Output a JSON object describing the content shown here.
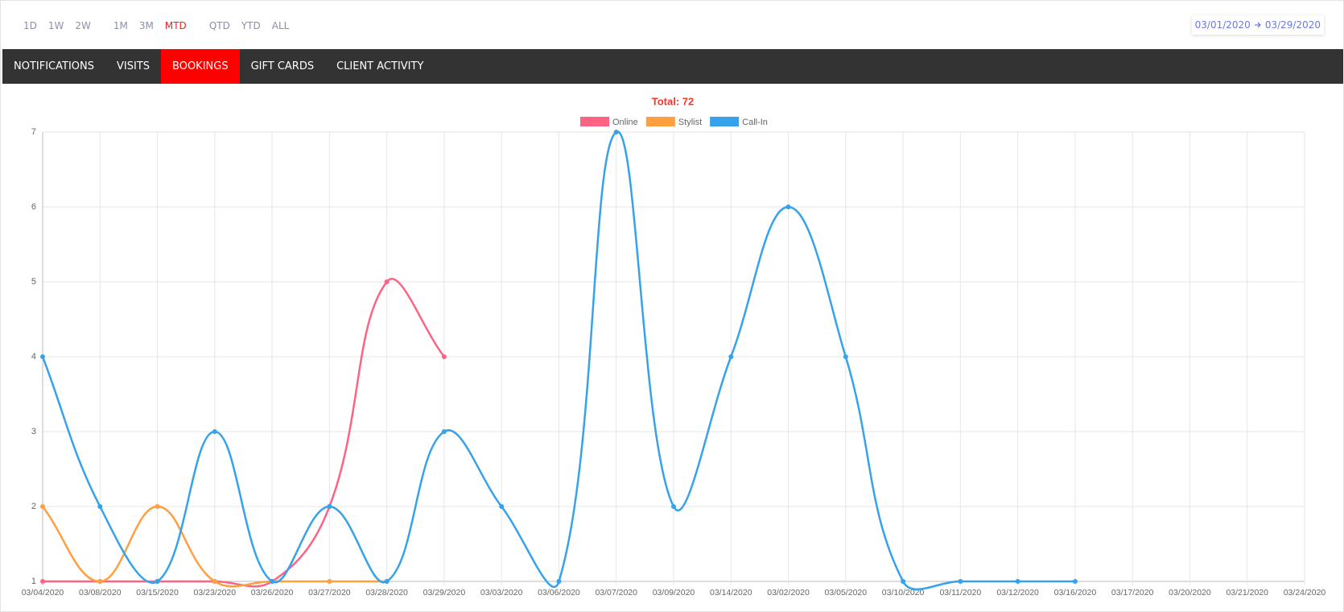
{
  "header": {
    "ranges": [
      "1D",
      "1W",
      "2W",
      "1M",
      "3M",
      "MTD",
      "QTD",
      "YTD",
      "ALL"
    ],
    "active_range": "MTD",
    "date_from": "03/01/2020",
    "date_to": "03/29/2020"
  },
  "tabs": [
    "NOTIFICATIONS",
    "VISITS",
    "BOOKINGS",
    "GIFT CARDS",
    "CLIENT ACTIVITY"
  ],
  "active_tab": "BOOKINGS",
  "chart_data": {
    "type": "line",
    "title": "Total: 72",
    "categories": [
      "03/04/2020",
      "03/08/2020",
      "03/15/2020",
      "03/23/2020",
      "03/26/2020",
      "03/27/2020",
      "03/28/2020",
      "03/29/2020",
      "03/03/2020",
      "03/06/2020",
      "03/07/2020",
      "03/09/2020",
      "03/14/2020",
      "03/02/2020",
      "03/05/2020",
      "03/10/2020",
      "03/11/2020",
      "03/12/2020",
      "03/16/2020",
      "03/17/2020",
      "03/20/2020",
      "03/21/2020",
      "03/24/2020"
    ],
    "series": [
      {
        "name": "Online",
        "color": "#ff6384",
        "values": [
          1,
          1,
          1,
          1,
          1,
          2,
          5,
          4,
          null,
          null,
          null,
          null,
          null,
          null,
          null,
          null,
          null,
          null,
          null,
          null,
          null,
          null,
          null
        ]
      },
      {
        "name": "Stylist",
        "color": "#ff9f40",
        "values": [
          2,
          1,
          2,
          1,
          1,
          1,
          1,
          null,
          null,
          null,
          null,
          null,
          null,
          null,
          null,
          null,
          null,
          null,
          null,
          null,
          null,
          null,
          null
        ]
      },
      {
        "name": "Call-In",
        "color": "#36a2eb",
        "values": [
          4,
          2,
          1,
          3,
          1,
          2,
          1,
          3,
          2,
          1,
          7,
          2,
          4,
          6,
          4,
          1,
          1,
          1,
          1,
          null,
          null,
          null,
          null
        ]
      }
    ],
    "ylim": [
      1,
      7
    ],
    "yticks": [
      1,
      2,
      3,
      4,
      5,
      6,
      7
    ],
    "grid": true,
    "legend": "top"
  }
}
